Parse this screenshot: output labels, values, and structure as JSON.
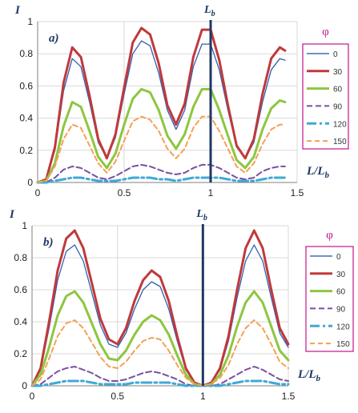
{
  "chart_data": [
    {
      "type": "line",
      "panel_label": "a)",
      "ylabel": "I",
      "xlabel": "L/Lb",
      "vline_label": "Lb",
      "vline_x": 1,
      "xlim": [
        0,
        1.5
      ],
      "ylim": [
        0,
        1
      ],
      "xticks": [
        "0",
        "0.5",
        "1",
        "1.5"
      ],
      "yticks": [
        "0",
        "0.2",
        "0.4",
        "0.6",
        "0.8",
        "1"
      ],
      "legend_title": "φ",
      "x": [
        0,
        0.05,
        0.1,
        0.15,
        0.2,
        0.25,
        0.3,
        0.35,
        0.4,
        0.45,
        0.5,
        0.55,
        0.6,
        0.65,
        0.7,
        0.75,
        0.8,
        0.85,
        0.9,
        0.95,
        1,
        1.05,
        1.1,
        1.15,
        1.2,
        1.25,
        1.3,
        1.35,
        1.4,
        1.43
      ],
      "series": [
        {
          "name": "0",
          "color": "#2f5fb0",
          "width": 1.3,
          "dash": "",
          "values": [
            0,
            0.02,
            0.2,
            0.57,
            0.77,
            0.72,
            0.5,
            0.25,
            0.15,
            0.28,
            0.55,
            0.8,
            0.88,
            0.85,
            0.68,
            0.45,
            0.33,
            0.45,
            0.72,
            0.86,
            0.86,
            0.7,
            0.45,
            0.22,
            0.15,
            0.25,
            0.5,
            0.7,
            0.77,
            0.76
          ]
        },
        {
          "name": "30",
          "color": "#c0393b",
          "width": 3,
          "dash": "",
          "values": [
            0,
            0.02,
            0.22,
            0.62,
            0.84,
            0.78,
            0.54,
            0.27,
            0.15,
            0.3,
            0.59,
            0.87,
            0.96,
            0.92,
            0.74,
            0.48,
            0.36,
            0.49,
            0.78,
            0.95,
            0.95,
            0.76,
            0.48,
            0.23,
            0.15,
            0.27,
            0.55,
            0.77,
            0.84,
            0.82
          ]
        },
        {
          "name": "60",
          "color": "#8dc63f",
          "width": 3,
          "dash": "",
          "values": [
            0,
            0.01,
            0.12,
            0.35,
            0.5,
            0.47,
            0.32,
            0.16,
            0.09,
            0.18,
            0.36,
            0.52,
            0.58,
            0.56,
            0.45,
            0.29,
            0.21,
            0.3,
            0.47,
            0.58,
            0.58,
            0.45,
            0.29,
            0.14,
            0.09,
            0.16,
            0.33,
            0.46,
            0.51,
            0.5
          ]
        },
        {
          "name": "90",
          "color": "#7b4fa0",
          "width": 2,
          "dash": "7,4",
          "values": [
            0,
            0,
            0.03,
            0.08,
            0.1,
            0.09,
            0.06,
            0.03,
            0.02,
            0.04,
            0.07,
            0.1,
            0.11,
            0.1,
            0.08,
            0.06,
            0.05,
            0.06,
            0.09,
            0.11,
            0.11,
            0.09,
            0.06,
            0.03,
            0.02,
            0.03,
            0.07,
            0.09,
            0.1,
            0.1
          ]
        },
        {
          "name": "120",
          "color": "#3fa9d6",
          "width": 3,
          "dash": "12,4,3,4",
          "values": [
            0,
            0,
            0.01,
            0.02,
            0.03,
            0.03,
            0.02,
            0.01,
            0.01,
            0.01,
            0.02,
            0.03,
            0.03,
            0.03,
            0.02,
            0.02,
            0.01,
            0.02,
            0.03,
            0.03,
            0.03,
            0.03,
            0.02,
            0.01,
            0.01,
            0.01,
            0.02,
            0.03,
            0.03,
            0.03
          ]
        },
        {
          "name": "150",
          "color": "#f4a155",
          "width": 2,
          "dash": "6,4",
          "values": [
            0,
            0.01,
            0.1,
            0.27,
            0.36,
            0.34,
            0.23,
            0.12,
            0.06,
            0.13,
            0.26,
            0.38,
            0.41,
            0.39,
            0.32,
            0.21,
            0.15,
            0.21,
            0.34,
            0.41,
            0.41,
            0.32,
            0.21,
            0.1,
            0.06,
            0.12,
            0.24,
            0.33,
            0.36,
            0.36
          ]
        }
      ]
    },
    {
      "type": "line",
      "panel_label": "b)",
      "ylabel": "I",
      "xlabel": "L/Lb",
      "vline_label": "Lb",
      "vline_x": 1,
      "xlim": [
        0,
        1.5
      ],
      "ylim": [
        0,
        1
      ],
      "xticks": [
        "0",
        "0.5",
        "1",
        "1.5"
      ],
      "yticks": [
        "0",
        "0.2",
        "0.4",
        "0.6",
        "0.8",
        "1"
      ],
      "legend_title": "φ",
      "x": [
        0,
        0.05,
        0.1,
        0.15,
        0.2,
        0.25,
        0.3,
        0.35,
        0.4,
        0.45,
        0.5,
        0.55,
        0.6,
        0.65,
        0.7,
        0.75,
        0.8,
        0.85,
        0.9,
        0.95,
        1,
        1.05,
        1.1,
        1.15,
        1.2,
        1.25,
        1.3,
        1.35,
        1.4,
        1.45,
        1.5
      ],
      "series": [
        {
          "name": "0",
          "color": "#2f5fb0",
          "width": 1.3,
          "dash": "",
          "values": [
            0,
            0.1,
            0.36,
            0.66,
            0.84,
            0.88,
            0.78,
            0.58,
            0.38,
            0.26,
            0.24,
            0.33,
            0.48,
            0.6,
            0.65,
            0.62,
            0.48,
            0.28,
            0.1,
            0.02,
            0,
            0.02,
            0.1,
            0.28,
            0.55,
            0.78,
            0.88,
            0.78,
            0.55,
            0.33,
            0.24
          ]
        },
        {
          "name": "30",
          "color": "#c0393b",
          "width": 3,
          "dash": "",
          "values": [
            0,
            0.11,
            0.4,
            0.72,
            0.92,
            0.97,
            0.86,
            0.64,
            0.42,
            0.29,
            0.26,
            0.36,
            0.53,
            0.66,
            0.72,
            0.68,
            0.53,
            0.31,
            0.11,
            0.02,
            0,
            0.02,
            0.11,
            0.31,
            0.6,
            0.86,
            0.97,
            0.86,
            0.6,
            0.36,
            0.26
          ]
        },
        {
          "name": "60",
          "color": "#8dc63f",
          "width": 3,
          "dash": "",
          "values": [
            0,
            0.07,
            0.24,
            0.44,
            0.56,
            0.59,
            0.52,
            0.39,
            0.26,
            0.17,
            0.16,
            0.22,
            0.32,
            0.4,
            0.44,
            0.41,
            0.32,
            0.19,
            0.07,
            0.01,
            0,
            0.01,
            0.07,
            0.19,
            0.37,
            0.52,
            0.59,
            0.52,
            0.37,
            0.22,
            0.16
          ]
        },
        {
          "name": "90",
          "color": "#7b4fa0",
          "width": 2,
          "dash": "7,4",
          "values": [
            0,
            0.01,
            0.05,
            0.09,
            0.11,
            0.12,
            0.1,
            0.08,
            0.05,
            0.03,
            0.03,
            0.04,
            0.06,
            0.08,
            0.09,
            0.08,
            0.06,
            0.04,
            0.01,
            0,
            0,
            0,
            0.01,
            0.04,
            0.07,
            0.1,
            0.12,
            0.1,
            0.07,
            0.04,
            0.03
          ]
        },
        {
          "name": "120",
          "color": "#3fa9d6",
          "width": 3,
          "dash": "12,4,3,4",
          "values": [
            0,
            0,
            0.01,
            0.02,
            0.03,
            0.03,
            0.03,
            0.02,
            0.01,
            0.01,
            0.01,
            0.01,
            0.02,
            0.02,
            0.02,
            0.02,
            0.02,
            0.01,
            0,
            0,
            0,
            0,
            0,
            0.01,
            0.02,
            0.03,
            0.03,
            0.03,
            0.02,
            0.01,
            0.01
          ]
        },
        {
          "name": "150",
          "color": "#f4a155",
          "width": 2,
          "dash": "6,4",
          "values": [
            0,
            0.04,
            0.17,
            0.31,
            0.39,
            0.41,
            0.36,
            0.27,
            0.18,
            0.12,
            0.11,
            0.15,
            0.22,
            0.28,
            0.3,
            0.29,
            0.22,
            0.13,
            0.05,
            0.01,
            0,
            0.01,
            0.05,
            0.13,
            0.26,
            0.36,
            0.41,
            0.36,
            0.26,
            0.15,
            0.11
          ]
        }
      ]
    }
  ]
}
